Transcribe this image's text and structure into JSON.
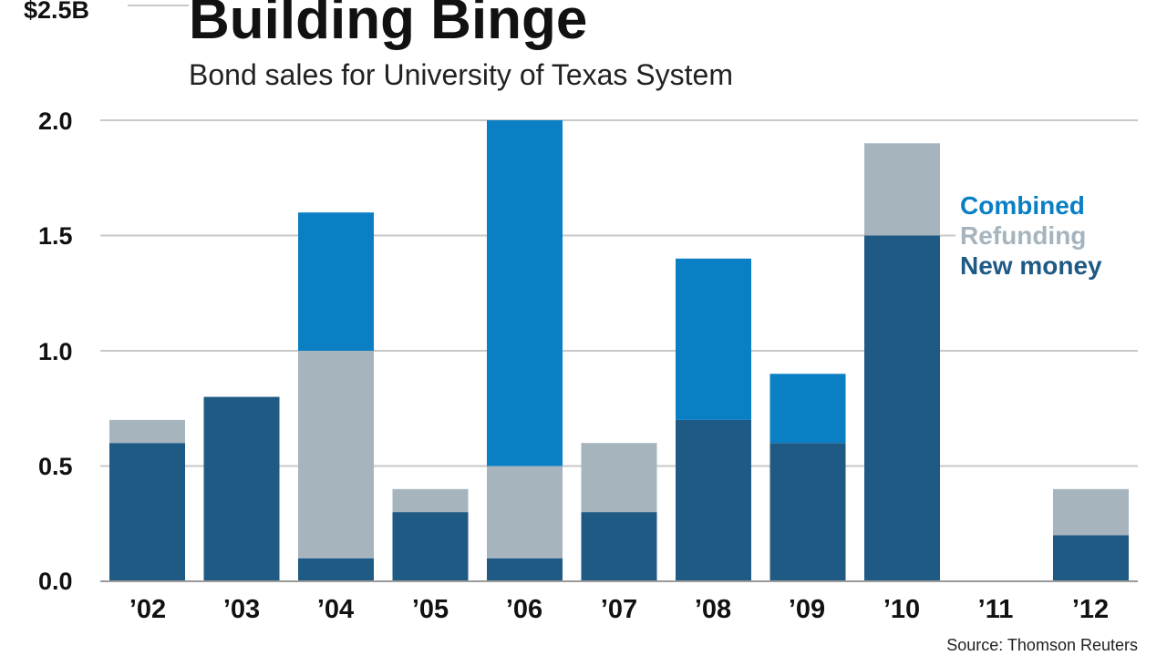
{
  "chart_data": {
    "type": "bar",
    "stacked": true,
    "title": "Building Binge",
    "subtitle": "Bond sales for University of Texas System",
    "y_unit_label": "$2.5B",
    "ylim": [
      0,
      2.5
    ],
    "yticks": [
      "0.0",
      "0.5",
      "1.0",
      "1.5",
      "2.0"
    ],
    "categories": [
      "’02",
      "’03",
      "’04",
      "’05",
      "’06",
      "’07",
      "’08",
      "’09",
      "’10",
      "’11",
      "’12"
    ],
    "series": [
      {
        "name": "New money",
        "color": "#1f5a85",
        "values": [
          0.6,
          0.8,
          0.1,
          0.3,
          0.1,
          0.3,
          0.7,
          0.6,
          1.5,
          0,
          0.2
        ]
      },
      {
        "name": "Refunding",
        "color": "#a6b4be",
        "values": [
          0.1,
          0,
          0.9,
          0.1,
          0.4,
          0.3,
          0,
          0,
          0.4,
          0,
          0.2
        ]
      },
      {
        "name": "Combined",
        "color": "#0a7fc4",
        "values": [
          0,
          0,
          0.6,
          0,
          1.5,
          0,
          0.7,
          0.3,
          0,
          0,
          0
        ]
      }
    ],
    "legend": [
      {
        "label": "Combined",
        "color": "#0a7fc4"
      },
      {
        "label": "Refunding",
        "color": "#a6b4be"
      },
      {
        "label": "New money",
        "color": "#1f5a85"
      }
    ],
    "legend_position": "right",
    "grid": true,
    "source": "Source: Thomson Reuters"
  }
}
